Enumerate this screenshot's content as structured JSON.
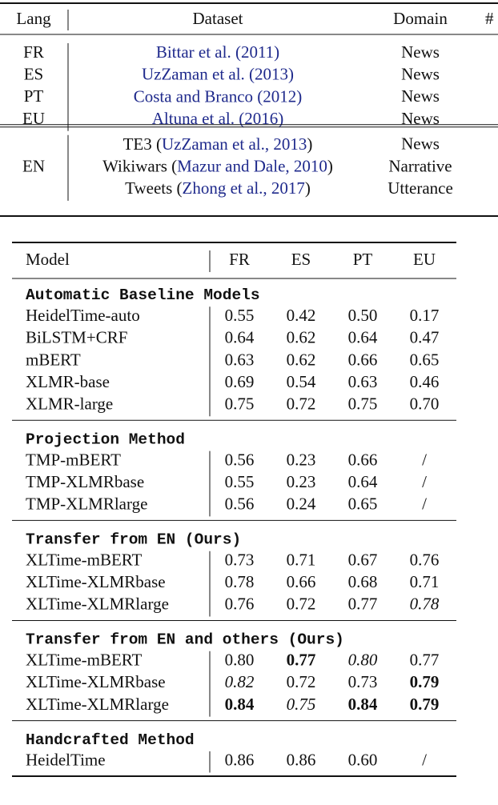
{
  "table1": {
    "header": [
      "Lang",
      "Dataset",
      "Domain",
      "#"
    ],
    "groups": [
      {
        "rows": [
          {
            "lang": "FR",
            "dataset": {
              "cite": "Bittar et al. (2011)"
            },
            "domain": "News"
          },
          {
            "lang": "ES",
            "dataset": {
              "cite": "UzZaman et al. (2013)"
            },
            "domain": "News"
          },
          {
            "lang": "PT",
            "dataset": {
              "cite": "Costa and Branco (2012)"
            },
            "domain": "News"
          },
          {
            "lang": "EU",
            "dataset": {
              "cite": "Altuna et al. (2016)"
            },
            "domain": "News"
          }
        ]
      },
      {
        "lang": "EN",
        "rows": [
          {
            "dataset": {
              "pre": "TE3 (",
              "cite": "UzZaman et al., 2013",
              "post": ")"
            },
            "domain": "News"
          },
          {
            "dataset": {
              "pre": "Wikiwars (",
              "cite": "Mazur and Dale, 2010",
              "post": ")"
            },
            "domain": "Narrative"
          },
          {
            "dataset": {
              "pre": "Tweets (",
              "cite": "Zhong et al., 2017",
              "post": ")"
            },
            "domain": "Utterance"
          }
        ]
      }
    ]
  },
  "table2": {
    "header": [
      "Model",
      "FR",
      "ES",
      "PT",
      "EU"
    ],
    "sections": [
      {
        "title": "Automatic Baseline Models",
        "rows": [
          {
            "cells": [
              "HeidelTime-auto",
              "0.55",
              "0.42",
              "0.50",
              "0.17"
            ]
          },
          {
            "cells": [
              "BiLSTM+CRF",
              "0.64",
              "0.62",
              "0.64",
              "0.47"
            ]
          },
          {
            "cells": [
              "mBERT",
              "0.63",
              "0.62",
              "0.66",
              "0.65"
            ]
          },
          {
            "cells": [
              "XLMR-base",
              "0.69",
              "0.54",
              "0.63",
              "0.46"
            ]
          },
          {
            "cells": [
              "XLMR-large",
              "0.75",
              "0.72",
              "0.75",
              "0.70"
            ]
          }
        ]
      },
      {
        "title": "Projection Method",
        "rows": [
          {
            "cells": [
              "TMP-mBERT",
              "0.56",
              "0.23",
              "0.66",
              "/"
            ]
          },
          {
            "cells": [
              "TMP-XLMRbase",
              "0.55",
              "0.23",
              "0.64",
              "/"
            ]
          },
          {
            "cells": [
              "TMP-XLMRlarge",
              "0.56",
              "0.24",
              "0.65",
              "/"
            ]
          }
        ]
      },
      {
        "title": "Transfer from EN (Ours)",
        "rows": [
          {
            "cells": [
              "XLTime-mBERT",
              "0.73",
              "0.71",
              "0.67",
              "0.76"
            ]
          },
          {
            "cells": [
              "XLTime-XLMRbase",
              "0.78",
              "0.66",
              "0.68",
              "0.71"
            ]
          },
          {
            "cells": [
              "XLTime-XLMRlarge",
              "0.76",
              "0.72",
              "0.77",
              "0.78"
            ],
            "italic": [
              4
            ]
          }
        ]
      },
      {
        "title": "Transfer from EN and others (Ours)",
        "rows": [
          {
            "cells": [
              "XLTime-mBERT",
              "0.80",
              "0.77",
              "0.80",
              "0.77"
            ],
            "bold": [
              2
            ],
            "italic": [
              3
            ]
          },
          {
            "cells": [
              "XLTime-XLMRbase",
              "0.82",
              "0.72",
              "0.73",
              "0.79"
            ],
            "bold": [
              4
            ],
            "italic": [
              1
            ]
          },
          {
            "cells": [
              "XLTime-XLMRlarge",
              "0.84",
              "0.75",
              "0.84",
              "0.79"
            ],
            "bold": [
              1,
              3,
              4
            ],
            "italic": [
              2
            ]
          }
        ]
      },
      {
        "title": "Handcrafted Method",
        "rows": [
          {
            "cells": [
              "HeidelTime",
              "0.86",
              "0.86",
              "0.60",
              "/"
            ]
          }
        ]
      }
    ]
  }
}
